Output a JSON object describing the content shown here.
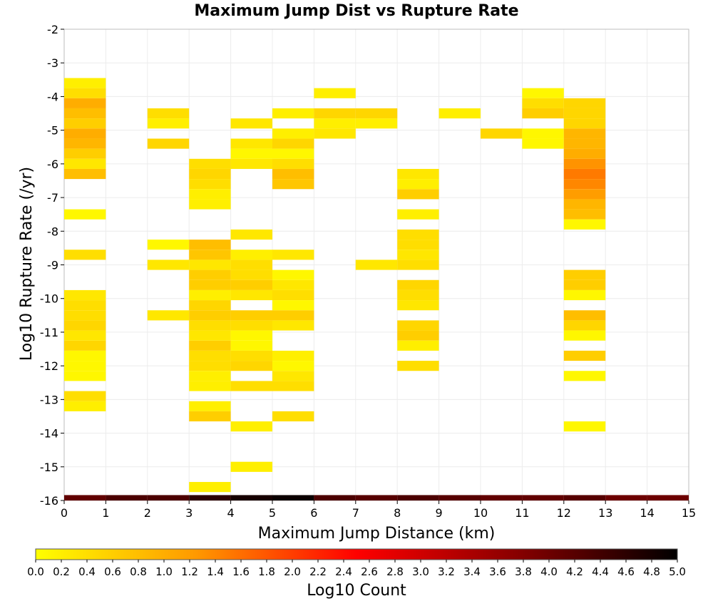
{
  "chart_data": {
    "type": "heatmap",
    "title": "Maximum Jump Dist vs Rupture Rate",
    "xlabel": "Maximum Jump Distance (km)",
    "ylabel": "Log10 Rupture Rate (/yr)",
    "xlim": [
      0,
      15
    ],
    "ylim": [
      -16,
      -2
    ],
    "x_bin_width": 1,
    "y_bin_height": 0.3,
    "x_ticks": [
      "0",
      "1",
      "2",
      "3",
      "4",
      "5",
      "6",
      "7",
      "8",
      "9",
      "10",
      "11",
      "12",
      "13",
      "14",
      "15"
    ],
    "y_ticks": [
      "-2",
      "-3",
      "-4",
      "-5",
      "-6",
      "-7",
      "-8",
      "-9",
      "-10",
      "-11",
      "-12",
      "-13",
      "-14",
      "-15",
      "-16"
    ],
    "grid": true,
    "colorbar": {
      "label": "Log10 Count",
      "range": [
        0.0,
        5.0
      ],
      "ticks": [
        "0.0",
        "0.2",
        "0.4",
        "0.6",
        "0.8",
        "1.0",
        "1.2",
        "1.4",
        "1.6",
        "1.8",
        "2.0",
        "2.2",
        "2.4",
        "2.6",
        "2.8",
        "3.0",
        "3.2",
        "3.4",
        "3.6",
        "3.8",
        "4.0",
        "4.2",
        "4.4",
        "4.6",
        "4.8",
        "5.0"
      ],
      "colors": [
        "#ffff00",
        "#ff9900",
        "#ff0000",
        "#880000",
        "#000000"
      ]
    },
    "cells": [
      {
        "x": 0,
        "y": -3.6,
        "v": 0.2
      },
      {
        "x": 0,
        "y": -3.9,
        "v": 0.4
      },
      {
        "x": 0,
        "y": -4.2,
        "v": 1.0
      },
      {
        "x": 0,
        "y": -4.5,
        "v": 0.8
      },
      {
        "x": 0,
        "y": -4.8,
        "v": 0.6
      },
      {
        "x": 0,
        "y": -5.1,
        "v": 1.0
      },
      {
        "x": 0,
        "y": -5.4,
        "v": 0.9
      },
      {
        "x": 0,
        "y": -5.7,
        "v": 0.6
      },
      {
        "x": 0,
        "y": -6.0,
        "v": 0.3
      },
      {
        "x": 0,
        "y": -6.3,
        "v": 0.8
      },
      {
        "x": 0,
        "y": -7.5,
        "v": 0.1
      },
      {
        "x": 0,
        "y": -8.7,
        "v": 0.4
      },
      {
        "x": 0,
        "y": -9.9,
        "v": 0.3
      },
      {
        "x": 0,
        "y": -10.2,
        "v": 0.4
      },
      {
        "x": 0,
        "y": -10.5,
        "v": 0.4
      },
      {
        "x": 0,
        "y": -10.8,
        "v": 0.5
      },
      {
        "x": 0,
        "y": -11.1,
        "v": 0.3
      },
      {
        "x": 0,
        "y": -11.4,
        "v": 0.5
      },
      {
        "x": 0,
        "y": -11.7,
        "v": 0.1
      },
      {
        "x": 0,
        "y": -12.0,
        "v": 0.1
      },
      {
        "x": 0,
        "y": -12.3,
        "v": 0.1
      },
      {
        "x": 0,
        "y": -12.9,
        "v": 0.4
      },
      {
        "x": 0,
        "y": -13.2,
        "v": 0.2
      },
      {
        "x": 2,
        "y": -4.5,
        "v": 0.4
      },
      {
        "x": 2,
        "y": -4.8,
        "v": 0.2
      },
      {
        "x": 2,
        "y": -5.4,
        "v": 0.5
      },
      {
        "x": 2,
        "y": -8.4,
        "v": 0.1
      },
      {
        "x": 2,
        "y": -9.0,
        "v": 0.3
      },
      {
        "x": 2,
        "y": -10.5,
        "v": 0.3
      },
      {
        "x": 3,
        "y": -6.0,
        "v": 0.4
      },
      {
        "x": 3,
        "y": -6.3,
        "v": 0.5
      },
      {
        "x": 3,
        "y": -6.6,
        "v": 0.4
      },
      {
        "x": 3,
        "y": -6.9,
        "v": 0.2
      },
      {
        "x": 3,
        "y": -7.2,
        "v": 0.2
      },
      {
        "x": 3,
        "y": -8.4,
        "v": 0.8
      },
      {
        "x": 3,
        "y": -8.7,
        "v": 0.7
      },
      {
        "x": 3,
        "y": -9.0,
        "v": 0.3
      },
      {
        "x": 3,
        "y": -9.3,
        "v": 0.6
      },
      {
        "x": 3,
        "y": -9.6,
        "v": 0.6
      },
      {
        "x": 3,
        "y": -9.9,
        "v": 0.2
      },
      {
        "x": 3,
        "y": -10.2,
        "v": 0.5
      },
      {
        "x": 3,
        "y": -10.5,
        "v": 0.6
      },
      {
        "x": 3,
        "y": -10.8,
        "v": 0.4
      },
      {
        "x": 3,
        "y": -11.1,
        "v": 0.3
      },
      {
        "x": 3,
        "y": -11.4,
        "v": 0.6
      },
      {
        "x": 3,
        "y": -11.7,
        "v": 0.4
      },
      {
        "x": 3,
        "y": -12.0,
        "v": 0.4
      },
      {
        "x": 3,
        "y": -12.3,
        "v": 0.2
      },
      {
        "x": 3,
        "y": -12.6,
        "v": 0.2
      },
      {
        "x": 3,
        "y": -13.2,
        "v": 0.2
      },
      {
        "x": 3,
        "y": -13.5,
        "v": 0.6
      },
      {
        "x": 3,
        "y": -15.6,
        "v": 0.2
      },
      {
        "x": 4,
        "y": -4.8,
        "v": 0.3
      },
      {
        "x": 4,
        "y": -5.4,
        "v": 0.3
      },
      {
        "x": 4,
        "y": -5.7,
        "v": 0.1
      },
      {
        "x": 4,
        "y": -6.0,
        "v": 0.3
      },
      {
        "x": 4,
        "y": -8.1,
        "v": 0.3
      },
      {
        "x": 4,
        "y": -8.7,
        "v": 0.2
      },
      {
        "x": 4,
        "y": -9.0,
        "v": 0.4
      },
      {
        "x": 4,
        "y": -9.3,
        "v": 0.4
      },
      {
        "x": 4,
        "y": -9.6,
        "v": 0.6
      },
      {
        "x": 4,
        "y": -9.9,
        "v": 0.3
      },
      {
        "x": 4,
        "y": -10.5,
        "v": 0.6
      },
      {
        "x": 4,
        "y": -10.8,
        "v": 0.4
      },
      {
        "x": 4,
        "y": -11.1,
        "v": 0.1
      },
      {
        "x": 4,
        "y": -11.4,
        "v": 0.1
      },
      {
        "x": 4,
        "y": -11.7,
        "v": 0.4
      },
      {
        "x": 4,
        "y": -12.0,
        "v": 0.5
      },
      {
        "x": 4,
        "y": -12.6,
        "v": 0.4
      },
      {
        "x": 4,
        "y": -13.8,
        "v": 0.2
      },
      {
        "x": 4,
        "y": -15.0,
        "v": 0.2
      },
      {
        "x": 5,
        "y": -4.5,
        "v": 0.2
      },
      {
        "x": 5,
        "y": -5.1,
        "v": 0.2
      },
      {
        "x": 5,
        "y": -5.4,
        "v": 0.5
      },
      {
        "x": 5,
        "y": -5.7,
        "v": 0.1
      },
      {
        "x": 5,
        "y": -6.0,
        "v": 0.4
      },
      {
        "x": 5,
        "y": -6.3,
        "v": 0.8
      },
      {
        "x": 5,
        "y": -6.6,
        "v": 0.7
      },
      {
        "x": 5,
        "y": -8.7,
        "v": 0.3
      },
      {
        "x": 5,
        "y": -9.3,
        "v": 0.1
      },
      {
        "x": 5,
        "y": -9.6,
        "v": 0.3
      },
      {
        "x": 5,
        "y": -9.9,
        "v": 0.4
      },
      {
        "x": 5,
        "y": -10.2,
        "v": 0.1
      },
      {
        "x": 5,
        "y": -10.5,
        "v": 0.6
      },
      {
        "x": 5,
        "y": -10.8,
        "v": 0.3
      },
      {
        "x": 5,
        "y": -11.7,
        "v": 0.2
      },
      {
        "x": 5,
        "y": -12.0,
        "v": 0.1
      },
      {
        "x": 5,
        "y": -12.3,
        "v": 0.3
      },
      {
        "x": 5,
        "y": -12.6,
        "v": 0.4
      },
      {
        "x": 5,
        "y": -13.5,
        "v": 0.4
      },
      {
        "x": 6,
        "y": -3.9,
        "v": 0.2
      },
      {
        "x": 6,
        "y": -4.5,
        "v": 0.5
      },
      {
        "x": 6,
        "y": -4.8,
        "v": 0.2
      },
      {
        "x": 6,
        "y": -5.1,
        "v": 0.3
      },
      {
        "x": 7,
        "y": -4.5,
        "v": 0.5
      },
      {
        "x": 7,
        "y": -4.8,
        "v": 0.2
      },
      {
        "x": 7,
        "y": -9.0,
        "v": 0.3
      },
      {
        "x": 8,
        "y": -6.3,
        "v": 0.3
      },
      {
        "x": 8,
        "y": -6.6,
        "v": 0.2
      },
      {
        "x": 8,
        "y": -6.9,
        "v": 0.6
      },
      {
        "x": 8,
        "y": -7.5,
        "v": 0.2
      },
      {
        "x": 8,
        "y": -8.1,
        "v": 0.4
      },
      {
        "x": 8,
        "y": -8.4,
        "v": 0.4
      },
      {
        "x": 8,
        "y": -8.7,
        "v": 0.3
      },
      {
        "x": 8,
        "y": -9.0,
        "v": 0.4
      },
      {
        "x": 8,
        "y": -9.6,
        "v": 0.5
      },
      {
        "x": 8,
        "y": -9.9,
        "v": 0.4
      },
      {
        "x": 8,
        "y": -10.2,
        "v": 0.3
      },
      {
        "x": 8,
        "y": -10.8,
        "v": 0.5
      },
      {
        "x": 8,
        "y": -11.1,
        "v": 0.6
      },
      {
        "x": 8,
        "y": -11.4,
        "v": 0.2
      },
      {
        "x": 8,
        "y": -12.0,
        "v": 0.4
      },
      {
        "x": 9,
        "y": -4.5,
        "v": 0.2
      },
      {
        "x": 10,
        "y": -5.1,
        "v": 0.5
      },
      {
        "x": 11,
        "y": -3.9,
        "v": 0.1
      },
      {
        "x": 11,
        "y": -4.2,
        "v": 0.4
      },
      {
        "x": 11,
        "y": -4.5,
        "v": 0.6
      },
      {
        "x": 11,
        "y": -5.1,
        "v": 0.1
      },
      {
        "x": 11,
        "y": -5.4,
        "v": 0.1
      },
      {
        "x": 12,
        "y": -4.2,
        "v": 0.5
      },
      {
        "x": 12,
        "y": -4.5,
        "v": 0.5
      },
      {
        "x": 12,
        "y": -4.8,
        "v": 0.5
      },
      {
        "x": 12,
        "y": -5.1,
        "v": 0.9
      },
      {
        "x": 12,
        "y": -5.4,
        "v": 0.9
      },
      {
        "x": 12,
        "y": -5.7,
        "v": 1.0
      },
      {
        "x": 12,
        "y": -6.0,
        "v": 1.3
      },
      {
        "x": 12,
        "y": -6.3,
        "v": 1.5
      },
      {
        "x": 12,
        "y": -6.6,
        "v": 1.4
      },
      {
        "x": 12,
        "y": -6.9,
        "v": 1.2
      },
      {
        "x": 12,
        "y": -7.2,
        "v": 0.9
      },
      {
        "x": 12,
        "y": -7.5,
        "v": 0.8
      },
      {
        "x": 12,
        "y": -7.8,
        "v": 0.1
      },
      {
        "x": 12,
        "y": -9.3,
        "v": 0.6
      },
      {
        "x": 12,
        "y": -9.6,
        "v": 0.6
      },
      {
        "x": 12,
        "y": -9.9,
        "v": 0.1
      },
      {
        "x": 12,
        "y": -10.5,
        "v": 0.8
      },
      {
        "x": 12,
        "y": -10.8,
        "v": 0.5
      },
      {
        "x": 12,
        "y": -11.1,
        "v": 0.1
      },
      {
        "x": 12,
        "y": -11.7,
        "v": 0.6
      },
      {
        "x": 12,
        "y": -12.3,
        "v": 0.1
      },
      {
        "x": 12,
        "y": -13.8,
        "v": 0.1
      }
    ],
    "baseline_row": [
      {
        "x": 0,
        "v": 4.1
      },
      {
        "x": 1,
        "v": 4.3
      },
      {
        "x": 2,
        "v": 4.3
      },
      {
        "x": 3,
        "v": 4.6
      },
      {
        "x": 4,
        "v": 4.8
      },
      {
        "x": 5,
        "v": 4.9
      },
      {
        "x": 6,
        "v": 4.3
      },
      {
        "x": 7,
        "v": 4.2
      },
      {
        "x": 8,
        "v": 4.3
      },
      {
        "x": 9,
        "v": 4.2
      },
      {
        "x": 10,
        "v": 4.1
      },
      {
        "x": 11,
        "v": 4.1
      },
      {
        "x": 12,
        "v": 4.2
      },
      {
        "x": 13,
        "v": 4.0
      },
      {
        "x": 14,
        "v": 4.0
      }
    ]
  }
}
